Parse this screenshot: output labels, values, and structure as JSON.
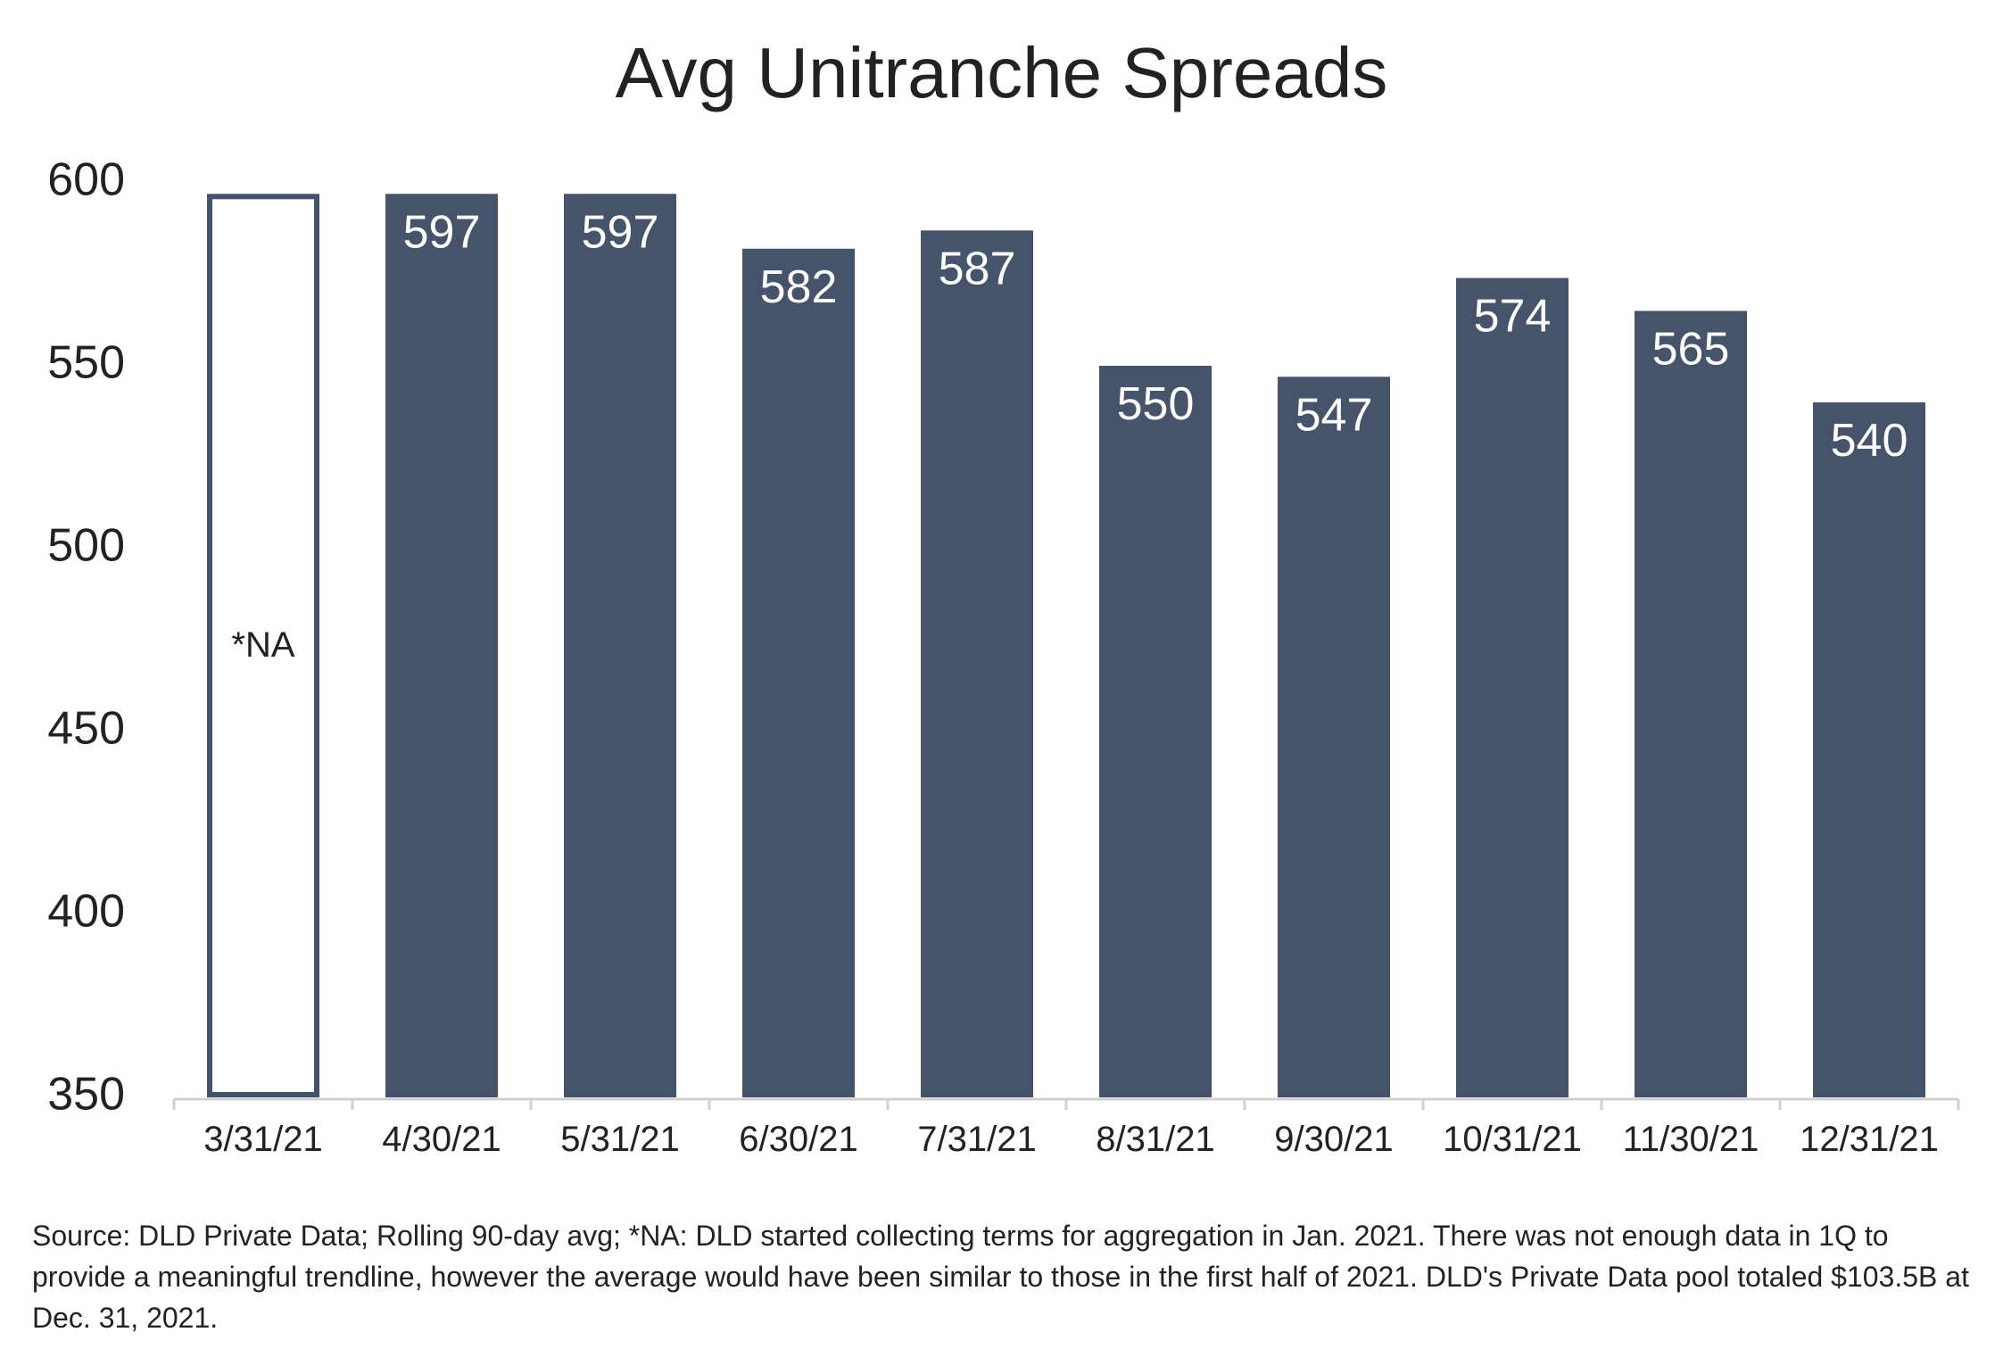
{
  "chart_data": {
    "type": "bar",
    "title": "Avg Unitranche Spreads",
    "xlabel": "",
    "ylabel": "",
    "ylim": [
      350,
      600
    ],
    "yticks": [
      350,
      400,
      450,
      500,
      550,
      600
    ],
    "grid": false,
    "categories": [
      "3/31/21",
      "4/30/21",
      "5/31/21",
      "6/30/21",
      "7/31/21",
      "8/31/21",
      "9/30/21",
      "10/31/21",
      "11/30/21",
      "12/31/21"
    ],
    "values": [
      597,
      597,
      597,
      582,
      587,
      550,
      547,
      574,
      565,
      540
    ],
    "labels": [
      "*NA",
      "597",
      "597",
      "582",
      "587",
      "550",
      "547",
      "574",
      "565",
      "540"
    ],
    "placeholder_index": 0,
    "colors": {
      "bar": "#45546b",
      "placeholder_outline": "#45546b",
      "bar_label": "#ffffff",
      "placeholder_label": "#222222",
      "axis": "#d0d0d0"
    }
  },
  "source_note": "Source: DLD Private Data; Rolling 90-day avg; *NA: DLD started collecting terms for aggregation in Jan. 2021. There was not enough data in 1Q to provide a meaningful trendline, however the average would have been similar to those in the first half of 2021. DLD's Private Data pool totaled $103.5B at Dec. 31, 2021."
}
